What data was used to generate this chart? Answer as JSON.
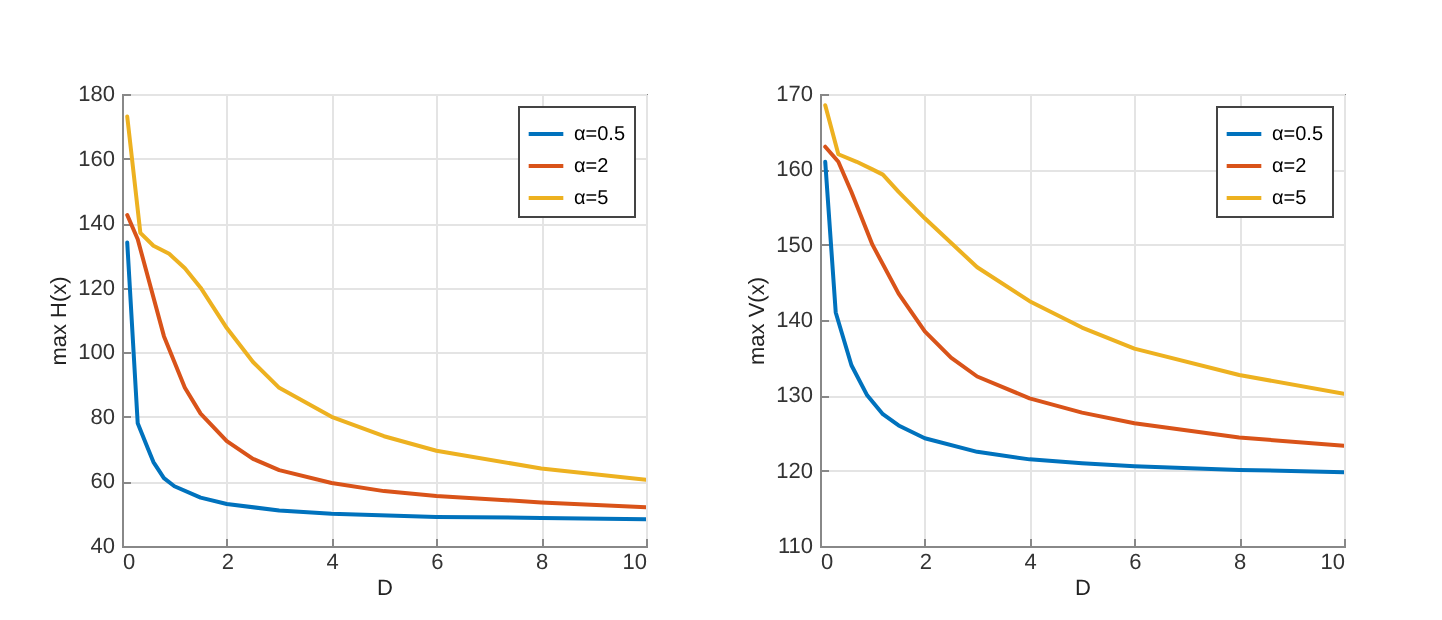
{
  "chart_data": [
    {
      "type": "line",
      "xlabel": "D",
      "ylabel": "max H(x)",
      "xlim": [
        0,
        10
      ],
      "xticks": [
        0,
        2,
        4,
        6,
        8,
        10
      ],
      "ylim": [
        40,
        180
      ],
      "yticks": [
        40,
        60,
        80,
        100,
        120,
        140,
        160,
        180
      ],
      "grid": true,
      "legend": "top right",
      "line_style": "solid",
      "series": [
        {
          "name": "α=0.5",
          "color": "#0072bd",
          "x": [
            0.1,
            0.3,
            0.5,
            0.6,
            0.8,
            1,
            1.5,
            2,
            3,
            4,
            6,
            8,
            10
          ],
          "values": [
            134,
            78,
            70,
            66,
            61,
            58.5,
            55,
            53,
            51,
            50,
            49,
            48.7,
            48.3
          ]
        },
        {
          "name": "α=2",
          "color": "#d95319",
          "x": [
            0.1,
            0.3,
            0.5,
            0.8,
            1,
            1.2,
            1.5,
            2,
            2.5,
            3,
            4,
            5,
            6,
            8,
            10
          ],
          "values": [
            142.5,
            135,
            123,
            105,
            97,
            89,
            81,
            72.5,
            67,
            63.5,
            59.5,
            57,
            55.5,
            53.5,
            52
          ]
        },
        {
          "name": "α=5",
          "color": "#edb120",
          "x": [
            0.1,
            0.35,
            0.6,
            0.9,
            1.2,
            1.5,
            2,
            2.5,
            3,
            4,
            5,
            6,
            8,
            10
          ],
          "values": [
            173,
            137,
            133,
            130.5,
            126,
            120,
            107.5,
            97,
            89,
            80,
            74,
            69.5,
            64,
            60.5
          ]
        }
      ]
    },
    {
      "type": "line",
      "xlabel": "D",
      "ylabel": "max V(x)",
      "xlim": [
        0,
        10
      ],
      "xticks": [
        0,
        2,
        4,
        6,
        8,
        10
      ],
      "ylim": [
        110,
        170
      ],
      "yticks": [
        110,
        120,
        130,
        140,
        150,
        160,
        170
      ],
      "grid": true,
      "legend": "top right",
      "line_style": "solid",
      "series": [
        {
          "name": "α=0.5",
          "color": "#0072bd",
          "x": [
            0.1,
            0.3,
            0.6,
            0.9,
            1.2,
            1.5,
            2,
            3,
            4,
            5,
            6,
            8,
            10
          ],
          "values": [
            161,
            141,
            134,
            130,
            127.5,
            126,
            124.3,
            122.5,
            121.5,
            121,
            120.6,
            120.1,
            119.8
          ]
        },
        {
          "name": "α=2",
          "color": "#d95319",
          "x": [
            0.1,
            0.35,
            0.6,
            1,
            1.5,
            2,
            2.5,
            3,
            4,
            5,
            6,
            8,
            10
          ],
          "values": [
            163,
            161,
            157,
            150,
            143.5,
            138.5,
            135,
            132.5,
            129.6,
            127.7,
            126.3,
            124.4,
            123.3
          ]
        },
        {
          "name": "α=5",
          "color": "#edb120",
          "x": [
            0.1,
            0.35,
            0.7,
            1,
            1.2,
            1.5,
            2,
            3,
            4,
            5,
            6,
            8,
            10
          ],
          "values": [
            168.5,
            162,
            161,
            160,
            159.3,
            157,
            153.5,
            147,
            142.5,
            139,
            136.2,
            132.7,
            130.2
          ]
        }
      ]
    }
  ]
}
